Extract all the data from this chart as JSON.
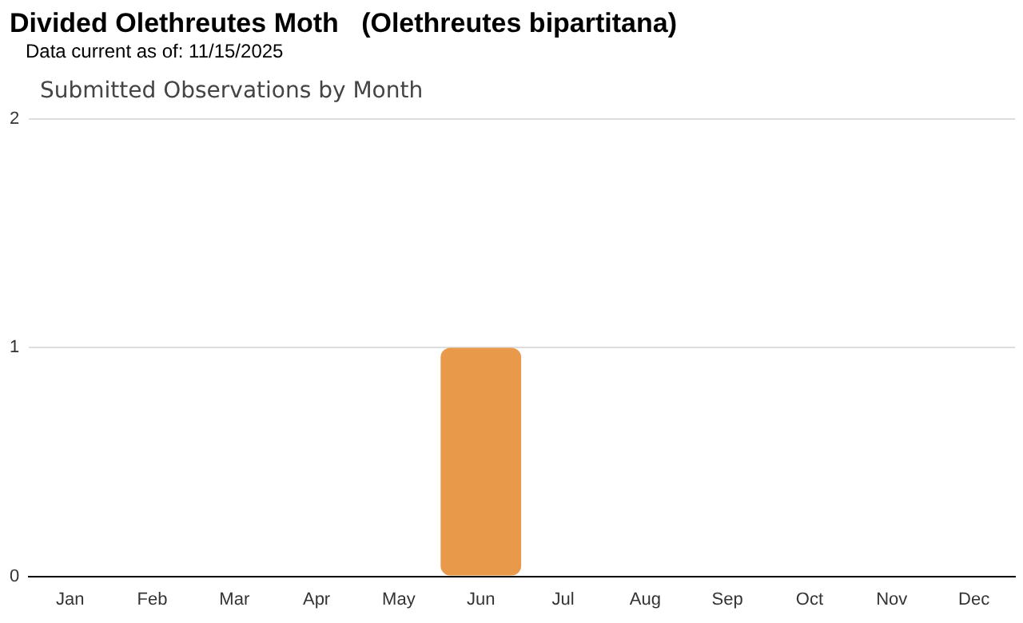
{
  "chart_data": {
    "type": "bar",
    "title": "Divided Olethreutes Moth   (Olethreutes bipartitana)",
    "subtitle": "Data current as of: 11/15/2025",
    "annotations": [
      "Submitted Observations by Month"
    ],
    "categories": [
      "Jan",
      "Feb",
      "Mar",
      "Apr",
      "May",
      "Jun",
      "Jul",
      "Aug",
      "Sep",
      "Oct",
      "Nov",
      "Dec"
    ],
    "values": [
      0,
      0,
      0,
      0,
      0,
      1,
      0,
      0,
      0,
      0,
      0,
      0
    ],
    "color": "#e8994a",
    "ylim": [
      0,
      2
    ],
    "yticks": [
      0,
      1,
      2
    ],
    "grid": "y",
    "legend": false
  }
}
